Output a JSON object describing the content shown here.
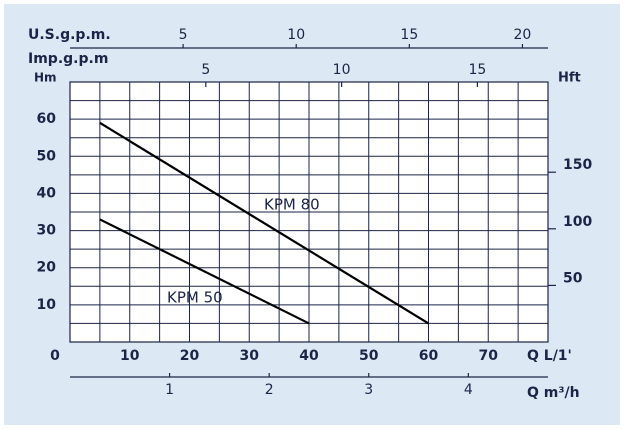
{
  "chart_data": {
    "type": "line",
    "xlabel": "Q  L/1'",
    "ylabel": "Hm",
    "y2label": "Hft",
    "xlim": [
      0,
      80
    ],
    "xticks": [
      0,
      10,
      20,
      30,
      40,
      50,
      60,
      70
    ],
    "ylim": [
      0,
      70
    ],
    "yticks": [
      10,
      20,
      30,
      40,
      50,
      60
    ],
    "y2lim": [
      0,
      229.7
    ],
    "y2ticks": [
      50,
      100,
      150
    ],
    "xgrid": [
      0,
      5,
      10,
      15,
      20,
      25,
      30,
      35,
      40,
      45,
      50,
      55,
      60,
      65,
      70,
      75,
      80
    ],
    "ygrid": [
      0,
      5,
      10,
      15,
      20,
      25,
      30,
      35,
      40,
      45,
      50,
      55,
      60,
      65,
      70
    ],
    "top_axes": [
      {
        "label": "U.S.g.p.m.",
        "lim": [
          0,
          21.13
        ],
        "ticks": [
          5,
          10,
          15,
          20
        ]
      },
      {
        "label": "Imp.g.p.m",
        "lim": [
          0,
          17.6
        ],
        "ticks": [
          5,
          10,
          15
        ]
      }
    ],
    "bottom_axis2": {
      "label": "Q  m³/h",
      "lim": [
        0,
        4.8
      ],
      "ticks": [
        1,
        2,
        3,
        4
      ]
    },
    "series": [
      {
        "name": "KPM 80",
        "color": "#000000",
        "x": [
          5,
          60
        ],
        "values": [
          59,
          5
        ]
      },
      {
        "name": "KPM 50",
        "color": "#000000",
        "x": [
          5,
          40
        ],
        "values": [
          33,
          5
        ]
      }
    ]
  }
}
